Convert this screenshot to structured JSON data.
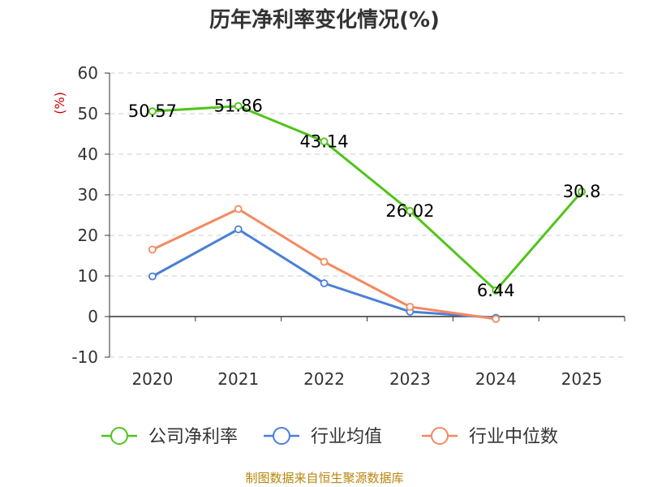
{
  "chart_data": {
    "type": "line",
    "title": "历年净利率变化情况(%)",
    "ylabel": "(%)",
    "xlabel": "",
    "ylim": [
      -10,
      60
    ],
    "yticks": [
      "60",
      "50",
      "40",
      "30",
      "20",
      "10",
      "0",
      "-10"
    ],
    "ytick_values": [
      60,
      50,
      40,
      30,
      20,
      10,
      0,
      -10
    ],
    "categories": [
      "2020",
      "2021",
      "2022",
      "2023",
      "2024",
      "2025"
    ],
    "grid": true,
    "legend_position": "bottom",
    "series": [
      {
        "name": "公司净利率",
        "color": "#52c41a",
        "values": [
          50.57,
          51.86,
          43.14,
          26.02,
          6.44,
          30.8
        ],
        "labels": [
          "50.57",
          "51.86",
          "43.14",
          "26.02",
          "6.44",
          "30.8"
        ]
      },
      {
        "name": "行业均值",
        "color": "#4a7fd6",
        "values": [
          9.9,
          21.5,
          8.2,
          1.2,
          -0.3,
          null
        ]
      },
      {
        "name": "行业中位数",
        "color": "#f4895f",
        "values": [
          16.5,
          26.5,
          13.5,
          2.4,
          -0.6,
          null
        ]
      }
    ],
    "source": "制图数据来自恒生聚源数据库"
  }
}
